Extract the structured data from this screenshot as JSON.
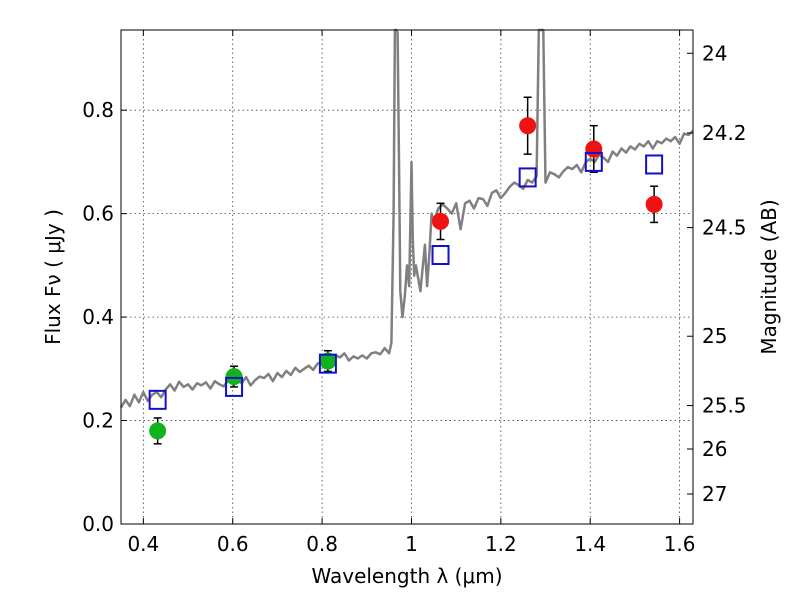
{
  "chart_data": {
    "type": "scatter",
    "xlabel": "Wavelength  λ (μm)",
    "ylabel": "Flux  Fν  ( μJy )",
    "y2label": "Magnitude (AB)",
    "xlim": [
      0.35,
      1.63
    ],
    "ylim": [
      0.0,
      0.955
    ],
    "x_ticks": [
      0.4,
      0.6,
      0.8,
      1.0,
      1.2,
      1.4,
      1.6
    ],
    "x_tick_labels": [
      "0.4",
      "0.6",
      "0.8",
      "1",
      "1.2",
      "1.4",
      "1.6"
    ],
    "y_ticks": [
      0.0,
      0.2,
      0.4,
      0.6,
      0.8
    ],
    "y_tick_labels": [
      "0.0",
      "0.2",
      "0.4",
      "0.6",
      "0.8"
    ],
    "y2_ticks": [
      {
        "label": "24",
        "flux": 0.91
      },
      {
        "label": "24.2",
        "flux": 0.756
      },
      {
        "label": "24.5",
        "flux": 0.573
      },
      {
        "label": "25",
        "flux": 0.363
      },
      {
        "label": "25.5",
        "flux": 0.229
      },
      {
        "label": "26",
        "flux": 0.145
      },
      {
        "label": "27",
        "flux": 0.058
      }
    ],
    "grid": true,
    "colors": {
      "spectrum": "#808080",
      "green": "#12b21f",
      "red": "#ef1212",
      "model_box": "#1010cc",
      "errorbar": "#000000"
    },
    "spectrum": {
      "x": [
        0.35,
        0.36,
        0.37,
        0.38,
        0.39,
        0.4,
        0.41,
        0.42,
        0.43,
        0.44,
        0.45,
        0.46,
        0.47,
        0.48,
        0.49,
        0.5,
        0.51,
        0.52,
        0.53,
        0.54,
        0.55,
        0.56,
        0.57,
        0.58,
        0.59,
        0.6,
        0.61,
        0.62,
        0.63,
        0.64,
        0.65,
        0.66,
        0.67,
        0.68,
        0.69,
        0.7,
        0.71,
        0.72,
        0.73,
        0.74,
        0.75,
        0.76,
        0.77,
        0.78,
        0.79,
        0.8,
        0.81,
        0.82,
        0.83,
        0.84,
        0.85,
        0.86,
        0.87,
        0.88,
        0.89,
        0.9,
        0.91,
        0.92,
        0.93,
        0.94,
        0.95,
        0.955,
        0.96,
        0.963,
        0.966,
        0.969,
        0.972,
        0.975,
        0.98,
        0.985,
        0.99,
        0.995,
        1.0,
        1.003,
        1.006,
        1.01,
        1.02,
        1.03,
        1.035,
        1.04,
        1.045,
        1.05,
        1.06,
        1.07,
        1.08,
        1.09,
        1.1,
        1.11,
        1.12,
        1.13,
        1.14,
        1.15,
        1.16,
        1.17,
        1.18,
        1.19,
        1.2,
        1.21,
        1.22,
        1.23,
        1.24,
        1.25,
        1.26,
        1.27,
        1.28,
        1.285,
        1.29,
        1.295,
        1.3,
        1.31,
        1.32,
        1.33,
        1.34,
        1.35,
        1.36,
        1.37,
        1.38,
        1.39,
        1.4,
        1.41,
        1.42,
        1.43,
        1.44,
        1.45,
        1.46,
        1.47,
        1.48,
        1.49,
        1.5,
        1.51,
        1.52,
        1.53,
        1.54,
        1.55,
        1.56,
        1.57,
        1.58,
        1.59,
        1.6,
        1.61,
        1.62,
        1.63
      ],
      "y": [
        0.225,
        0.24,
        0.228,
        0.25,
        0.235,
        0.255,
        0.238,
        0.25,
        0.255,
        0.245,
        0.26,
        0.27,
        0.258,
        0.275,
        0.265,
        0.27,
        0.26,
        0.272,
        0.268,
        0.274,
        0.262,
        0.276,
        0.27,
        0.266,
        0.278,
        0.27,
        0.28,
        0.272,
        0.284,
        0.268,
        0.278,
        0.285,
        0.282,
        0.29,
        0.276,
        0.292,
        0.284,
        0.296,
        0.288,
        0.302,
        0.294,
        0.3,
        0.306,
        0.298,
        0.31,
        0.314,
        0.318,
        0.32,
        0.326,
        0.322,
        0.33,
        0.316,
        0.324,
        0.32,
        0.326,
        0.32,
        0.33,
        0.332,
        0.328,
        0.34,
        0.33,
        0.35,
        0.6,
        0.955,
        0.955,
        0.95,
        0.7,
        0.45,
        0.4,
        0.44,
        0.5,
        0.46,
        0.7,
        0.55,
        0.48,
        0.5,
        0.45,
        0.54,
        0.46,
        0.52,
        0.6,
        0.585,
        0.61,
        0.618,
        0.61,
        0.6,
        0.62,
        0.57,
        0.62,
        0.625,
        0.61,
        0.63,
        0.628,
        0.615,
        0.64,
        0.645,
        0.63,
        0.64,
        0.652,
        0.66,
        0.655,
        0.648,
        0.665,
        0.66,
        0.672,
        0.955,
        0.955,
        0.955,
        0.66,
        0.68,
        0.676,
        0.67,
        0.682,
        0.69,
        0.686,
        0.694,
        0.68,
        0.7,
        0.706,
        0.7,
        0.714,
        0.708,
        0.7,
        0.72,
        0.712,
        0.726,
        0.718,
        0.73,
        0.724,
        0.735,
        0.73,
        0.74,
        0.726,
        0.74,
        0.736,
        0.745,
        0.74,
        0.748,
        0.735,
        0.755,
        0.752,
        0.76
      ]
    },
    "series": [
      {
        "marker": "circle",
        "color": "green",
        "x": [
          0.432,
          0.603,
          0.813
        ],
        "y": [
          0.18,
          0.285,
          0.315
        ],
        "yerr": [
          0.025,
          0.02,
          0.02
        ]
      },
      {
        "marker": "circle",
        "color": "red",
        "x": [
          1.065,
          1.26,
          1.408,
          1.543
        ],
        "y": [
          0.585,
          0.77,
          0.725,
          0.618
        ],
        "yerr": [
          0.035,
          0.055,
          0.045,
          0.035
        ]
      },
      {
        "marker": "square",
        "color": "model_box",
        "x": [
          0.432,
          0.603,
          0.813,
          1.065,
          1.26,
          1.408,
          1.543
        ],
        "y": [
          0.24,
          0.265,
          0.31,
          0.52,
          0.67,
          0.7,
          0.695
        ]
      }
    ]
  }
}
